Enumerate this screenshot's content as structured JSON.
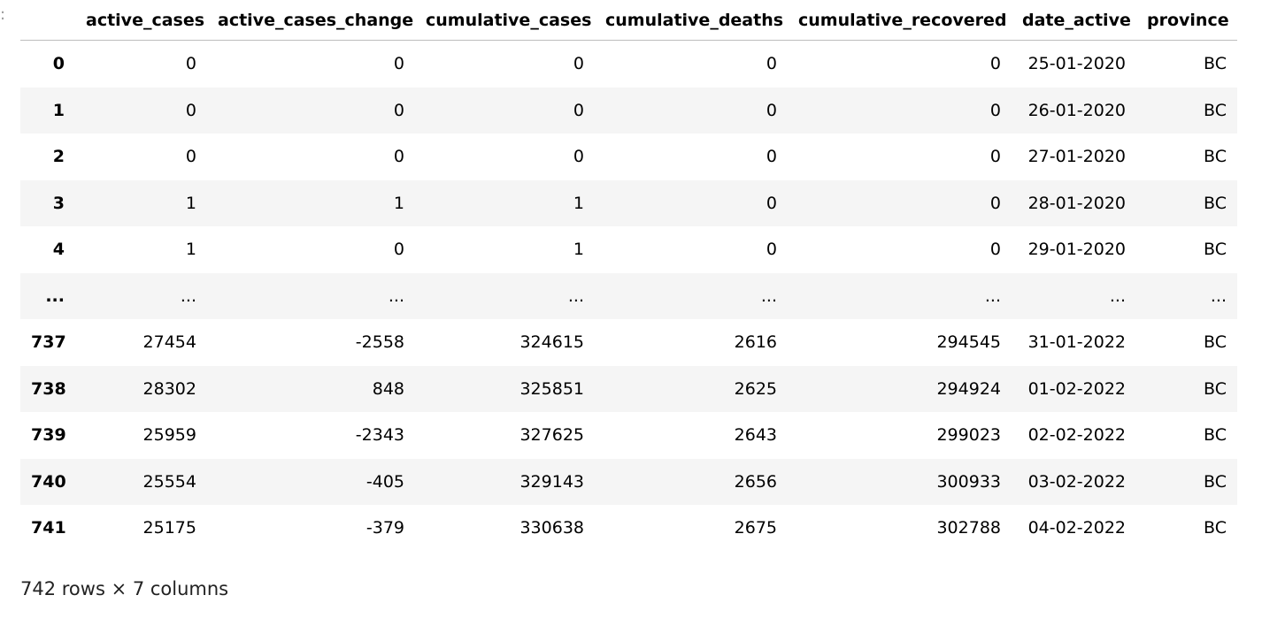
{
  "prompt": ":",
  "table": {
    "columns": [
      "active_cases",
      "active_cases_change",
      "cumulative_cases",
      "cumulative_deaths",
      "cumulative_recovered",
      "date_active",
      "province"
    ],
    "rows": [
      {
        "index": "0",
        "cells": [
          "0",
          "0",
          "0",
          "0",
          "0",
          "25-01-2020",
          "BC"
        ]
      },
      {
        "index": "1",
        "cells": [
          "0",
          "0",
          "0",
          "0",
          "0",
          "26-01-2020",
          "BC"
        ]
      },
      {
        "index": "2",
        "cells": [
          "0",
          "0",
          "0",
          "0",
          "0",
          "27-01-2020",
          "BC"
        ]
      },
      {
        "index": "3",
        "cells": [
          "1",
          "1",
          "1",
          "0",
          "0",
          "28-01-2020",
          "BC"
        ]
      },
      {
        "index": "4",
        "cells": [
          "1",
          "0",
          "1",
          "0",
          "0",
          "29-01-2020",
          "BC"
        ]
      },
      {
        "index": "...",
        "cells": [
          "...",
          "...",
          "...",
          "...",
          "...",
          "...",
          "..."
        ]
      },
      {
        "index": "737",
        "cells": [
          "27454",
          "-2558",
          "324615",
          "2616",
          "294545",
          "31-01-2022",
          "BC"
        ]
      },
      {
        "index": "738",
        "cells": [
          "28302",
          "848",
          "325851",
          "2625",
          "294924",
          "01-02-2022",
          "BC"
        ]
      },
      {
        "index": "739",
        "cells": [
          "25959",
          "-2343",
          "327625",
          "2643",
          "299023",
          "02-02-2022",
          "BC"
        ]
      },
      {
        "index": "740",
        "cells": [
          "25554",
          "-405",
          "329143",
          "2656",
          "300933",
          "03-02-2022",
          "BC"
        ]
      },
      {
        "index": "741",
        "cells": [
          "25175",
          "-379",
          "330638",
          "2675",
          "302788",
          "04-02-2022",
          "BC"
        ]
      }
    ],
    "footer": "742 rows × 7 columns"
  }
}
